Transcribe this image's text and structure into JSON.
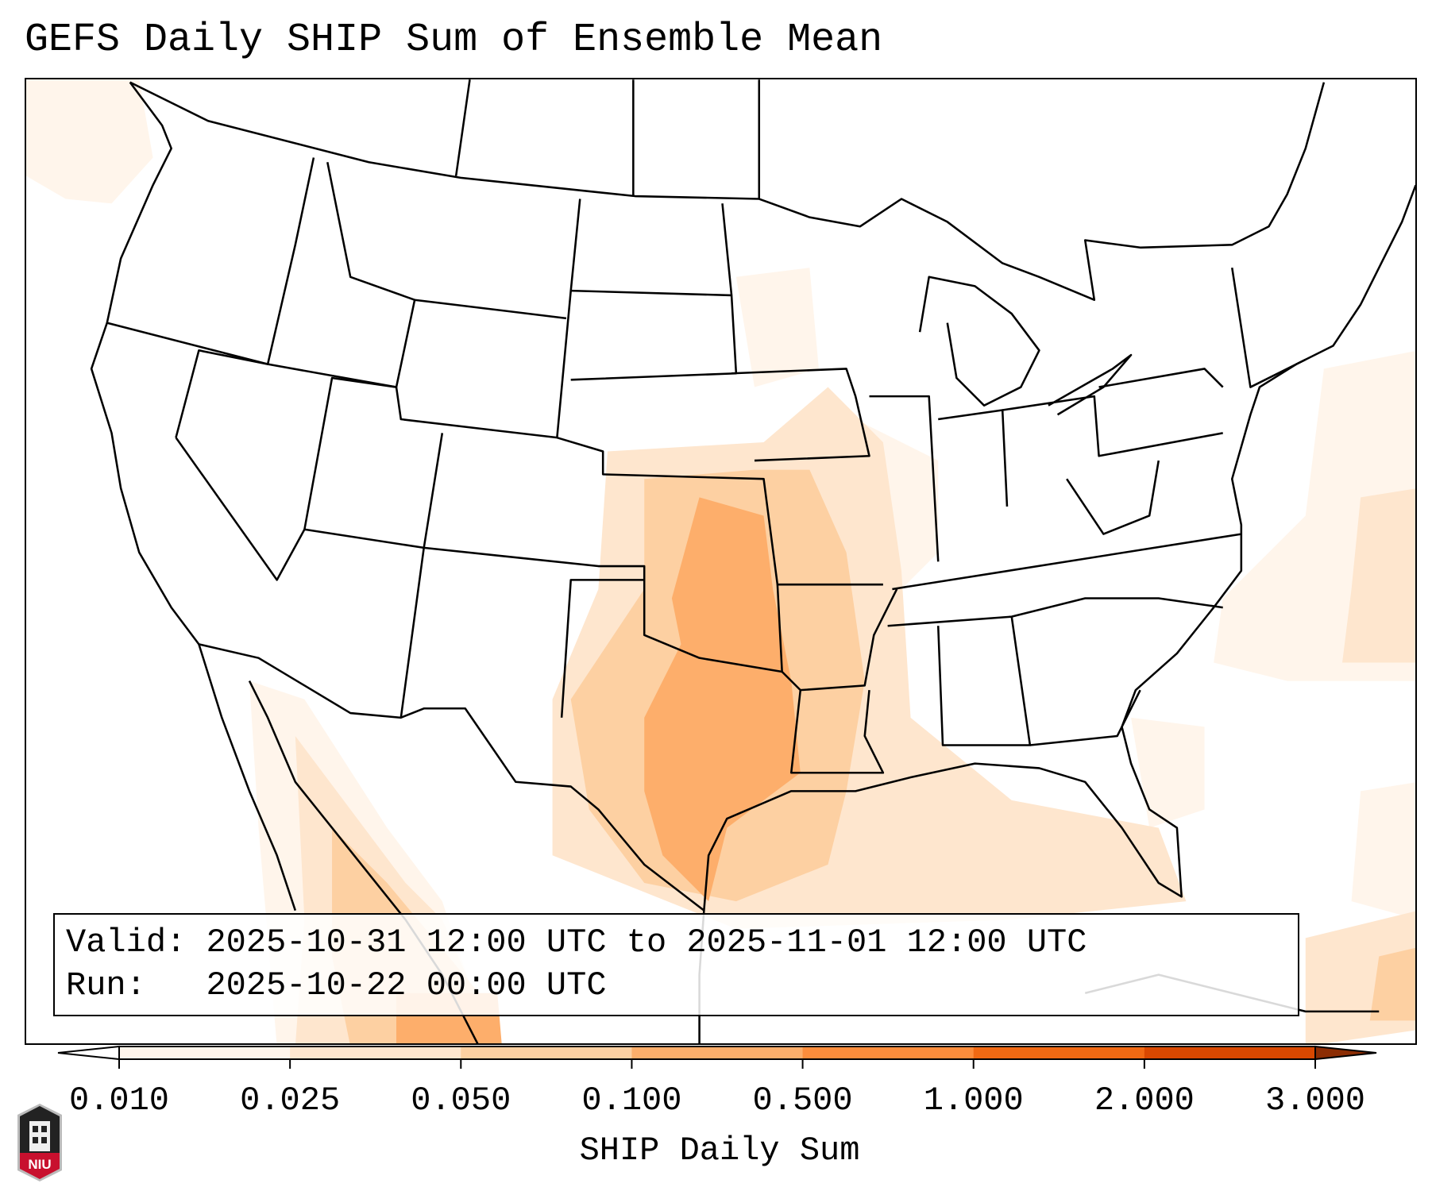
{
  "title": "GEFS Daily SHIP Sum of Ensemble Mean",
  "legend": {
    "valid_label": "Valid:",
    "valid_value": "2025-10-31 12:00 UTC to 2025-11-01 12:00 UTC",
    "run_label": "Run:",
    "run_value": "2025-10-22 00:00 UTC"
  },
  "colorbar": {
    "label": "SHIP Daily Sum",
    "ticks": [
      "0.010",
      "0.025",
      "0.050",
      "0.100",
      "0.500",
      "1.000",
      "2.000",
      "3.000"
    ],
    "colors": [
      "#fff5eb",
      "#fee6ce",
      "#fdd0a2",
      "#fdae6b",
      "#fd8d3c",
      "#f16913",
      "#d94801"
    ],
    "over_color": "#8c2d04",
    "under_color": "#ffffff"
  },
  "logo": {
    "text": "NIU"
  }
}
